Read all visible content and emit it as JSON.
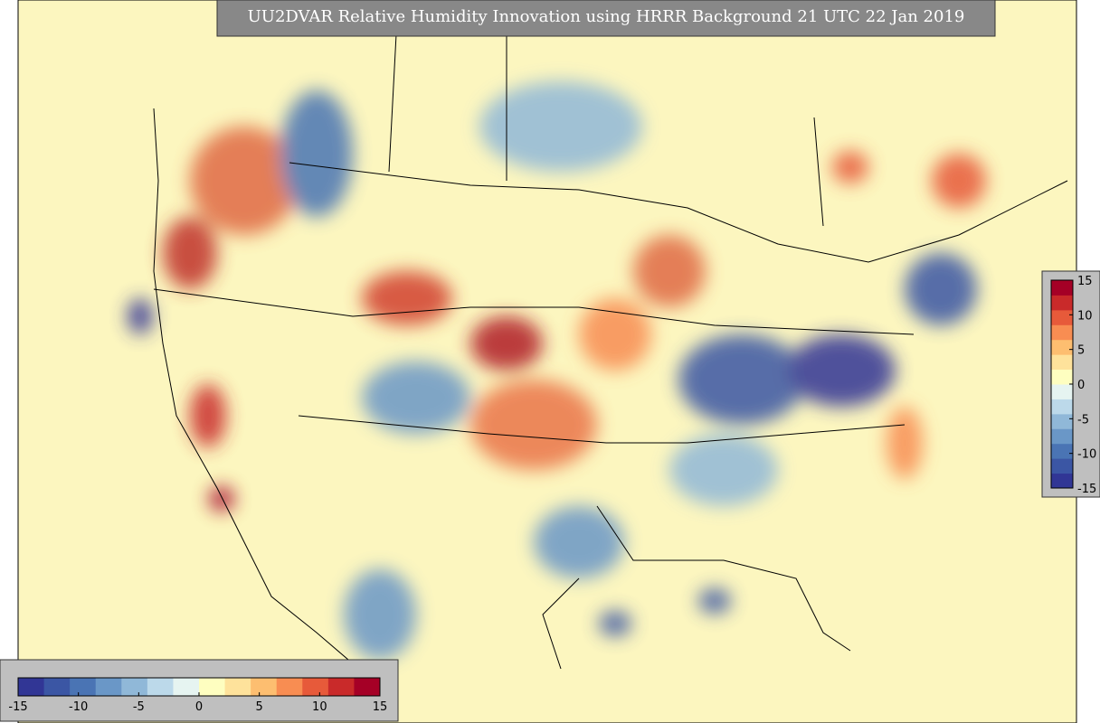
{
  "title": "UU2DVAR Relative Humidity Innovation using HRRR Background 21 UTC 22 Jan 2019",
  "colorbar": {
    "range": [
      -15,
      15
    ],
    "ticks": [
      -15,
      -10,
      -5,
      0,
      5,
      10,
      15
    ],
    "colors": [
      "#313695",
      "#3b56a4",
      "#4a74b4",
      "#6a97c7",
      "#90b8d8",
      "#bcd9ea",
      "#e6f4f1",
      "#fefec0",
      "#fee29b",
      "#fdbe70",
      "#f88d52",
      "#e75a3a",
      "#c92a2a",
      "#a50026"
    ]
  }
}
